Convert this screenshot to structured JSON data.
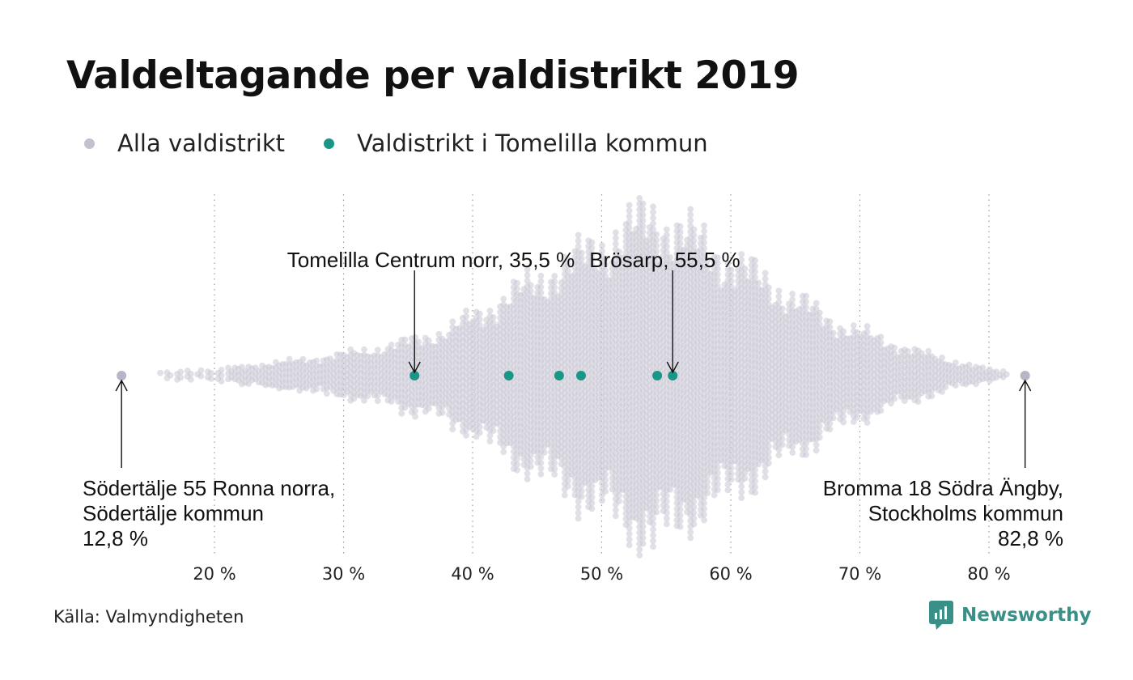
{
  "title": "Valdeltagande per valdistrikt 2019",
  "legend": [
    {
      "label": "Alla valdistrikt",
      "color": "#c3c1cf"
    },
    {
      "label": "Valdistrikt i Tomelilla kommun",
      "color": "#1a9688"
    }
  ],
  "source": "Källa: Valmyndigheten",
  "brand": "Newsworthy",
  "chart_data": {
    "type": "scatter",
    "subtype": "beeswarm",
    "x_range": [
      10,
      85
    ],
    "x_ticks": [
      {
        "value": 20,
        "label": "20 %"
      },
      {
        "value": 30,
        "label": "30 %"
      },
      {
        "value": 40,
        "label": "40 %"
      },
      {
        "value": 50,
        "label": "50 %"
      },
      {
        "value": 60,
        "label": "60 %"
      },
      {
        "value": 70,
        "label": "70 %"
      },
      {
        "value": 80,
        "label": "80 %"
      }
    ],
    "grid": "vertical dotted",
    "all_districts": {
      "min": 12.8,
      "max": 82.8,
      "peak_near": 54,
      "color": "#c3c1cf"
    },
    "highlight": {
      "name": "Valdistrikt i Tomelilla kommun",
      "color": "#1a9688",
      "values": [
        35.5,
        42.8,
        46.7,
        48.4,
        54.3,
        55.5
      ]
    },
    "annotations": [
      {
        "value": 35.5,
        "lines": [
          "Tomelilla Centrum norr, 35,5 %"
        ],
        "position": "above"
      },
      {
        "value": 55.5,
        "lines": [
          "Brösarp, 55,5 %"
        ],
        "position": "above"
      },
      {
        "value": 12.8,
        "lines": [
          "Södertälje 55 Ronna norra,",
          "Södertälje kommun",
          "12,8 %"
        ],
        "position": "below-left"
      },
      {
        "value": 82.8,
        "lines": [
          "Bromma 18 Södra Ängby,",
          "Stockholms kommun",
          "82,8 %"
        ],
        "position": "below-right"
      }
    ]
  }
}
